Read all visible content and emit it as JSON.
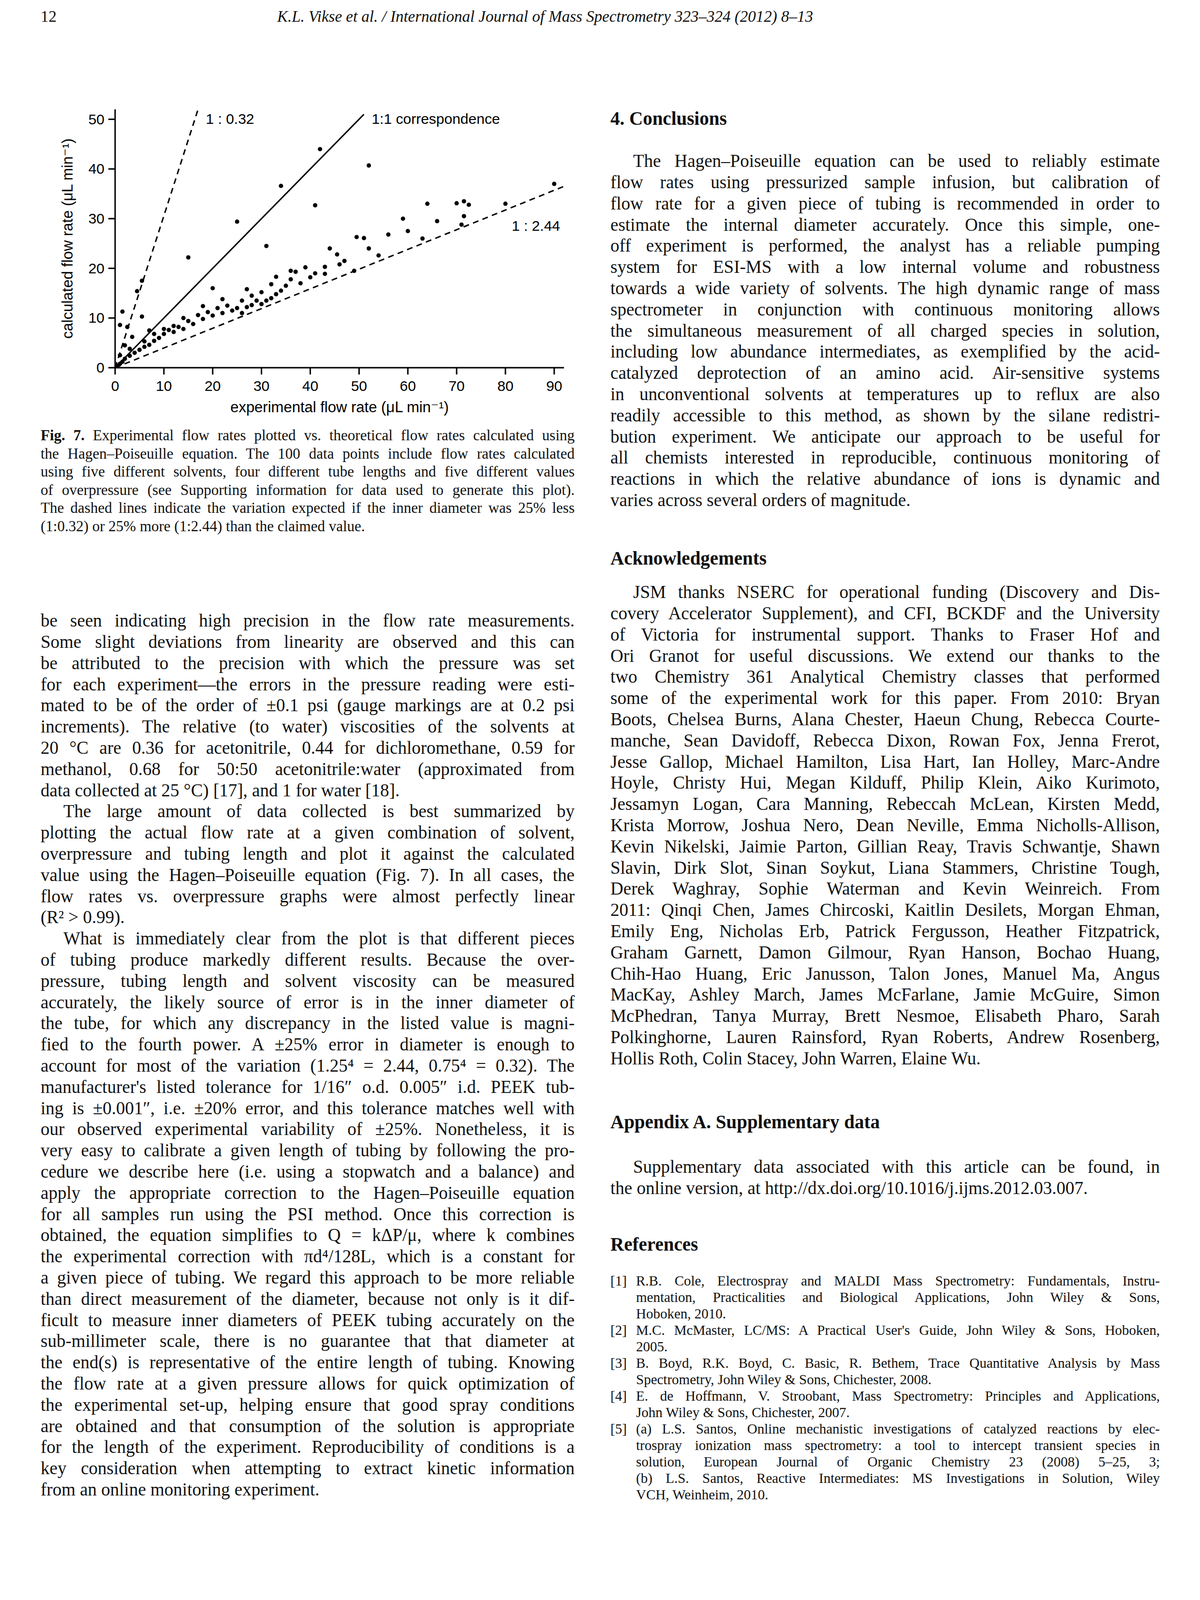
{
  "header": {
    "page_number": "12",
    "running_title": "K.L. Vikse et al. / International Journal of Mass Spectrometry 323–324 (2012) 8–13"
  },
  "chart_data": {
    "type": "scatter",
    "x_label": "experimental flow rate (μL min⁻¹)",
    "y_label": "calculated flow rate (μL min⁻¹)",
    "xlim": [
      0,
      92
    ],
    "ylim": [
      0,
      52
    ],
    "xticks": [
      0,
      10,
      20,
      30,
      40,
      50,
      60,
      70,
      80,
      90
    ],
    "yticks": [
      0,
      10,
      20,
      30,
      40,
      50
    ],
    "grid": false,
    "series": [
      {
        "type": "scatter",
        "marker": "circle",
        "color": "#000000",
        "x": [
          42,
          52,
          34,
          25,
          15,
          41,
          31,
          20,
          64,
          70,
          71.5,
          72.5,
          80,
          90,
          71.5,
          71,
          59,
          49.5,
          51,
          44,
          45.5,
          39,
          37,
          43,
          43,
          49,
          63,
          54,
          47,
          46,
          36,
          35,
          34,
          33,
          32,
          31,
          30,
          29,
          28,
          27,
          26,
          25,
          24,
          23,
          22,
          21,
          20,
          19,
          18,
          17,
          16,
          15,
          14,
          13,
          12,
          11,
          10,
          9,
          8,
          7,
          6,
          5,
          4,
          3,
          2,
          1.5,
          1,
          1,
          1.5,
          4.5,
          5.5,
          2.5,
          3.5,
          5.5,
          2,
          3,
          6,
          8,
          10,
          12,
          26,
          28,
          30,
          32,
          38,
          40,
          41,
          52,
          56,
          66,
          60,
          36,
          33,
          27,
          14,
          18,
          22,
          0.5,
          1,
          7
        ],
        "values": [
          44,
          40.7,
          36.6,
          29.4,
          22.2,
          32.7,
          24.5,
          16,
          33,
          33.1,
          33.5,
          32.8,
          33,
          37,
          30.5,
          28.8,
          30,
          26.3,
          26.1,
          24,
          22.8,
          20.2,
          19.3,
          20.3,
          18.9,
          19.5,
          26,
          22.6,
          21.5,
          20.8,
          17.8,
          16.5,
          15.5,
          14.8,
          14,
          13.5,
          12.8,
          13.5,
          12.6,
          12.2,
          13.5,
          12,
          11.5,
          12.5,
          11,
          12,
          10.5,
          11.2,
          9.8,
          10.6,
          8.8,
          9.4,
          7.8,
          8.2,
          7.2,
          7.6,
          6.8,
          6,
          5.4,
          4.6,
          4.2,
          3.6,
          3,
          2.4,
          1.8,
          1.2,
          0.8,
          8.6,
          11.3,
          15.4,
          17.5,
          8.2,
          6.2,
          10.3,
          4.5,
          3.8,
          5.3,
          6.8,
          7.8,
          8.4,
          11,
          14.5,
          15.2,
          16.8,
          17,
          18.2,
          19,
          24,
          26.8,
          29.5,
          27.5,
          19.5,
          18.3,
          15.8,
          10,
          12.4,
          13.8,
          0.4,
          2.5,
          7.5
        ]
      },
      {
        "name": "1 : 0.32",
        "type": "line",
        "line_style": "dashed",
        "color": "#000000",
        "x": [
          0,
          17
        ],
        "values": [
          0,
          52
        ]
      },
      {
        "name": "1:1 correspondence",
        "type": "line",
        "line_style": "solid",
        "color": "#000000",
        "x": [
          0,
          51
        ],
        "values": [
          0,
          51
        ]
      },
      {
        "name": "1 : 2.44",
        "type": "line",
        "line_style": "dashed",
        "color": "#000000",
        "x": [
          0,
          92
        ],
        "values": [
          0,
          36.5
        ]
      }
    ]
  },
  "figure": {
    "label": "Fig. 7.",
    "caption_lines": [
      "Experimental flow rates plotted vs. theoretical flow rates calculated using",
      "the Hagen–Poiseuille equation. The 100 data points include flow rates calculated",
      "using five different solvents, four different tube lengths and five different values",
      "of overpressure (see Supporting information for data used to generate this plot).",
      "The dashed lines indicate the variation expected if the inner diameter was 25% less",
      "(1:0.32) or 25% more (1:2.44) than the claimed value."
    ]
  },
  "left_column": {
    "paragraphs": [
      [
        "be seen indicating high precision in the flow rate measurements.",
        "Some slight deviations from linearity are observed and this can",
        "be attributed to the precision with which the pressure was set",
        "for each experiment—the errors in the pressure reading were esti-",
        "mated to be of the order of ±0.1 psi (gauge markings are at 0.2 psi",
        "increments). The relative (to water) viscosities of the solvents at",
        "20 °C are 0.36 for acetonitrile, 0.44 for dichloromethane, 0.59 for",
        "methanol, 0.68 for 50:50 acetonitrile:water (approximated from",
        "data collected at 25 °C) [17], and 1 for water [18]."
      ],
      [
        "The large amount of data collected is best summarized by",
        "plotting the actual flow rate at a given combination of solvent,",
        "overpressure and tubing length and plot it against the calculated",
        "value using the Hagen–Poiseuille equation (Fig. 7). In all cases, the",
        "flow rates vs. overpressure graphs were almost perfectly linear",
        "(R² > 0.99)."
      ],
      [
        "What is immediately clear from the plot is that different pieces",
        "of tubing produce markedly different results. Because the over-",
        "pressure, tubing length and solvent viscosity can be measured",
        "accurately, the likely source of error is in the inner diameter of",
        "the tube, for which any discrepancy in the listed value is magni-",
        "fied to the fourth power. A ±25% error in diameter is enough to",
        "account for most of the variation (1.25⁴ = 2.44, 0.75⁴ = 0.32). The",
        "manufacturer's listed tolerance for 1/16″ o.d. 0.005″ i.d. PEEK tub-",
        "ing is ±0.001″, i.e. ±20% error, and this tolerance matches well with",
        "our observed experimental variability of ±25%. Nonetheless, it is",
        "very easy to calibrate a given length of tubing by following the pro-",
        "cedure we describe here (i.e. using a stopwatch and a balance) and",
        "apply the appropriate correction to the Hagen–Poiseuille equation",
        "for all samples run using the PSI method. Once this correction is",
        "obtained, the equation simplifies to Q = kΔP/μ, where k combines",
        "the experimental correction with πd⁴/128L, which is a constant for",
        "a given piece of tubing. We regard this approach to be more reliable",
        "than direct measurement of the diameter, because not only is it dif-",
        "ficult to measure inner diameters of PEEK tubing accurately on the",
        "sub-millimeter scale, there is no guarantee that that diameter at",
        "the end(s) is representative of the entire length of tubing. Knowing",
        "the flow rate at a given pressure allows for quick optimization of",
        "the experimental set-up, helping ensure that good spray conditions",
        "are obtained and that consumption of the solution is appropriate",
        "for the length of the experiment. Reproducibility of conditions is a",
        "key consideration when attempting to extract kinetic information",
        "from an online monitoring experiment."
      ]
    ]
  },
  "conclusions": {
    "heading": "4. Conclusions",
    "paragraphs": [
      [
        "The Hagen–Poiseuille equation can be used to reliably estimate",
        "flow rates using pressurized sample infusion, but calibration of",
        "flow rate for a given piece of tubing is recommended in order to",
        "estimate the internal diameter accurately. Once this simple, one-",
        "off experiment is performed, the analyst has a reliable pumping",
        "system for ESI-MS with a low internal volume and robustness",
        "towards a wide variety of solvents. The high dynamic range of mass",
        "spectrometer in conjunction with continuous monitoring allows",
        "the simultaneous measurement of all charged species in solution,",
        "including low abundance intermediates, as exemplified by the acid-",
        "catalyzed deprotection of an amino acid. Air-sensitive systems",
        "in unconventional solvents at temperatures up to reflux are also",
        "readily accessible to this method, as shown by the silane redistri-",
        "bution experiment. We anticipate our approach to be useful for",
        "all chemists interested in reproducible, continuous monitoring of",
        "reactions in which the relative abundance of ions is dynamic and",
        "varies across several orders of magnitude."
      ]
    ]
  },
  "acknowledgements": {
    "heading": "Acknowledgements",
    "paragraphs": [
      [
        "JSM thanks NSERC for operational funding (Discovery and Dis-",
        "covery Accelerator Supplement), and CFI, BCKDF and the University",
        "of Victoria for instrumental support. Thanks to Fraser Hof and",
        "Ori Granot for useful discussions. We extend our thanks to the",
        "two Chemistry 361 Analytical Chemistry classes that performed",
        "some of the experimental work for this paper. From 2010: Bryan",
        "Boots, Chelsea Burns, Alana Chester, Haeun Chung, Rebecca Courte-",
        "manche, Sean Davidoff, Rebecca Dixon, Rowan Fox, Jenna Frerot,",
        "Jesse Gallop, Michael Hamilton, Lisa Hart, Ian Holley, Marc-Andre",
        "Hoyle, Christy Hui, Megan Kilduff, Philip Klein, Aiko Kurimoto,",
        "Jessamyn Logan, Cara Manning, Rebeccah McLean, Kirsten Medd,",
        "Krista Morrow, Joshua Nero, Dean Neville, Emma Nicholls-Allison,",
        "Kevin Nikelski, Jaimie Parton, Gillian Reay, Travis Schwantje, Shawn",
        "Slavin, Dirk Slot, Sinan Soykut, Liana Stammers, Christine Tough,",
        "Derek Waghray, Sophie Waterman and Kevin Weinreich. From",
        "2011: Qinqi Chen, James Chircoski, Kaitlin Desilets, Morgan Ehman,",
        "Emily Eng, Nicholas Erb, Patrick Fergusson, Heather Fitzpatrick,",
        "Graham Garnett, Damon Gilmour, Ryan Hanson, Bochao Huang,",
        "Chih-Hao Huang, Eric Janusson, Talon Jones, Manuel Ma, Angus",
        "MacKay, Ashley March, James McFarlane, Jamie McGuire, Simon",
        "McPhedran, Tanya Murray, Brett Nesmoe, Elisabeth Pharo, Sarah",
        "Polkinghorne, Lauren Rainsford, Ryan Roberts, Andrew Rosenberg,",
        "Hollis Roth, Colin Stacey, John Warren, Elaine Wu."
      ]
    ]
  },
  "appendix": {
    "heading": "Appendix A. Supplementary data",
    "paragraphs": [
      [
        "Supplementary data associated with this article can be found, in",
        "the online version, at http://dx.doi.org/10.1016/j.ijms.2012.03.007."
      ]
    ]
  },
  "references": {
    "heading": "References",
    "items": [
      {
        "number": "[1]",
        "lines": [
          "R.B. Cole, Electrospray and MALDI Mass Spectrometry: Fundamentals, Instru-",
          "mentation, Practicalities and Biological Applications, John Wiley & Sons,",
          "Hoboken, 2010."
        ]
      },
      {
        "number": "[2]",
        "lines": [
          "M.C. McMaster, LC/MS: A Practical User's Guide, John Wiley & Sons, Hoboken,",
          "2005."
        ]
      },
      {
        "number": "[3]",
        "lines": [
          "B. Boyd, R.K. Boyd, C. Basic, R. Bethem, Trace Quantitative Analysis by Mass",
          "Spectrometry, John Wiley & Sons, Chichester, 2008."
        ]
      },
      {
        "number": "[4]",
        "lines": [
          "E. de Hoffmann, V. Stroobant, Mass Spectrometry: Principles and Applications,",
          "John Wiley & Sons, Chichester, 2007."
        ]
      },
      {
        "number": "[5]",
        "lines": [
          "(a) L.S. Santos, Online mechanistic investigations of catalyzed reactions by elec-",
          "trospray ionization mass spectrometry: a tool to intercept transient species in",
          "solution, European Journal of Organic Chemistry 23 (2008) 5–25, 3;",
          "(b) L.S. Santos, Reactive Intermediates: MS Investigations in Solution, Wiley",
          "VCH, Weinheim, 2010."
        ]
      }
    ]
  }
}
